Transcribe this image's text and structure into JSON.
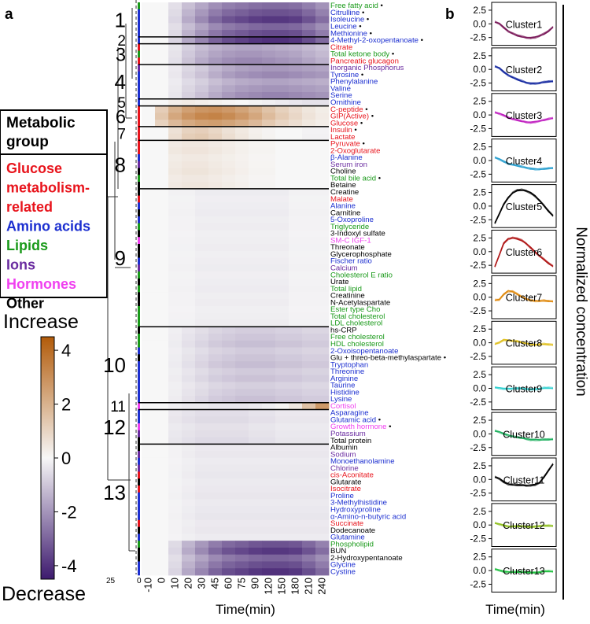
{
  "panel_labels": {
    "a": "a",
    "b": "b"
  },
  "legend": {
    "title": "Metabolic group",
    "groups": [
      {
        "name": "Glucose metabolism-related",
        "lines": [
          "Glucose",
          "metabolism-",
          "related"
        ],
        "color": "#e8141c"
      },
      {
        "name": "Amino acids",
        "lines": [
          "Amino acids"
        ],
        "color": "#1c2fd0"
      },
      {
        "name": "Lipids",
        "lines": [
          "Lipids"
        ],
        "color": "#1a9a1a"
      },
      {
        "name": "Ions",
        "lines": [
          "Ions"
        ],
        "color": "#6a2ca0"
      },
      {
        "name": "Hormones",
        "lines": [
          "Hormones"
        ],
        "color": "#f040f0"
      },
      {
        "name": "Other",
        "lines": [
          "Other"
        ],
        "color": "#000000"
      }
    ]
  },
  "colorbar": {
    "increase_label": "Increase",
    "decrease_label": "Decrease",
    "ticks": [
      "4",
      "2",
      "0",
      "-2",
      "-4"
    ],
    "tick_values": [
      4,
      2,
      0,
      -2,
      -4
    ],
    "range": [
      -4.5,
      4.5
    ],
    "low_color": "#3d1a6e",
    "mid_color": "#f7f7f7",
    "high_color": "#b25b0a"
  },
  "colors": {
    "Glu": "#e8141c",
    "AA": "#1c2fd0",
    "Lip": "#1a9a1a",
    "Ion": "#6a2ca0",
    "Hor": "#f040f0",
    "Oth": "#000000"
  },
  "dendrogram_axis_labels": [
    "25",
    "0"
  ],
  "heatmap": {
    "xlabel": "Time(min)",
    "time_points": [
      "-10",
      "0",
      "10",
      "20",
      "30",
      "45",
      "60",
      "75",
      "90",
      "120",
      "150",
      "180",
      "210",
      "240"
    ],
    "clusters": [
      {
        "id": "1",
        "start": 0,
        "end": 4
      },
      {
        "id": "2",
        "start": 5,
        "end": 5
      },
      {
        "id": "3",
        "start": 6,
        "end": 8
      },
      {
        "id": "4",
        "start": 9,
        "end": 13
      },
      {
        "id": "5",
        "start": 14,
        "end": 14
      },
      {
        "id": "6",
        "start": 15,
        "end": 17
      },
      {
        "id": "7",
        "start": 18,
        "end": 19
      },
      {
        "id": "8",
        "start": 20,
        "end": 26
      },
      {
        "id": "9",
        "start": 27,
        "end": 46
      },
      {
        "id": "10",
        "start": 47,
        "end": 57
      },
      {
        "id": "11",
        "start": 58,
        "end": 58
      },
      {
        "id": "12",
        "start": 59,
        "end": 63
      },
      {
        "id": "13",
        "start": 64,
        "end": 77
      }
    ],
    "rows": [
      {
        "name": "Free fatty acid",
        "group": "Lip",
        "dot": true
      },
      {
        "name": "Citrulline",
        "group": "AA",
        "dot": true
      },
      {
        "name": "Isoleucine",
        "group": "AA",
        "dot": true
      },
      {
        "name": "Leucine",
        "group": "AA",
        "dot": true
      },
      {
        "name": "Methionine",
        "group": "AA",
        "dot": true
      },
      {
        "name": "4-Methyl-2-oxopentanoate",
        "group": "AA",
        "dot": true
      },
      {
        "name": "Citrate",
        "group": "Glu",
        "dot": false
      },
      {
        "name": "Total ketone body",
        "group": "Lip",
        "dot": true
      },
      {
        "name": "Pancreatic glucagon",
        "group": "Glu",
        "dot": false
      },
      {
        "name": "Inorganic Phosphorus",
        "group": "Ion",
        "dot": false
      },
      {
        "name": "Tyrosine",
        "group": "AA",
        "dot": true
      },
      {
        "name": "Phenylalanine",
        "group": "AA",
        "dot": false
      },
      {
        "name": "Valine",
        "group": "AA",
        "dot": false
      },
      {
        "name": "Serine",
        "group": "AA",
        "dot": false
      },
      {
        "name": "Ornithine",
        "group": "AA",
        "dot": false
      },
      {
        "name": "C-peptide",
        "group": "Glu",
        "dot": true
      },
      {
        "name": "GIP(Active)",
        "group": "Glu",
        "dot": true
      },
      {
        "name": "Glucose",
        "group": "Glu",
        "dot": true
      },
      {
        "name": "Insulin",
        "group": "Glu",
        "dot": true
      },
      {
        "name": "Lactate",
        "group": "Glu",
        "dot": false
      },
      {
        "name": "Pyruvate",
        "group": "Glu",
        "dot": true
      },
      {
        "name": "2-Oxoglutarate",
        "group": "Glu",
        "dot": false
      },
      {
        "name": "β-Alanine",
        "group": "AA",
        "dot": false
      },
      {
        "name": "Serum iron",
        "group": "Ion",
        "dot": false
      },
      {
        "name": "Choline",
        "group": "Oth",
        "dot": false
      },
      {
        "name": "Total bile acid",
        "group": "Lip",
        "dot": true
      },
      {
        "name": "Betaine",
        "group": "Oth",
        "dot": false
      },
      {
        "name": "Creatine",
        "group": "Oth",
        "dot": false
      },
      {
        "name": "Malate",
        "group": "Glu",
        "dot": false
      },
      {
        "name": "Alanine",
        "group": "AA",
        "dot": false
      },
      {
        "name": "Carnitine",
        "group": "Oth",
        "dot": false
      },
      {
        "name": "5-Oxoproline",
        "group": "AA",
        "dot": false
      },
      {
        "name": "Triglyceride",
        "group": "Lip",
        "dot": false
      },
      {
        "name": "3-Indoxyl sulfate",
        "group": "Oth",
        "dot": false
      },
      {
        "name": "SM-C IGF-1",
        "group": "Hor",
        "dot": false
      },
      {
        "name": "Threonate",
        "group": "Oth",
        "dot": false
      },
      {
        "name": "Glycerophosphate",
        "group": "Oth",
        "dot": false
      },
      {
        "name": "Fischer ratio",
        "group": "AA",
        "dot": false
      },
      {
        "name": "Calcium",
        "group": "Ion",
        "dot": false
      },
      {
        "name": "Cholesterol E ratio",
        "group": "Lip",
        "dot": false
      },
      {
        "name": "Urate",
        "group": "Oth",
        "dot": false
      },
      {
        "name": "Total lipid",
        "group": "Lip",
        "dot": false
      },
      {
        "name": "Creatinine",
        "group": "Oth",
        "dot": false
      },
      {
        "name": "N-Acetylaspartate",
        "group": "Oth",
        "dot": false
      },
      {
        "name": "Ester type Cho",
        "group": "Lip",
        "dot": false
      },
      {
        "name": "Total cholesterol",
        "group": "Lip",
        "dot": false
      },
      {
        "name": "LDL cholesterol",
        "group": "Lip",
        "dot": false
      },
      {
        "name": "hs-CRP",
        "group": "Oth",
        "dot": false
      },
      {
        "name": "Free cholesterol",
        "group": "Lip",
        "dot": false
      },
      {
        "name": "HDL cholesterol",
        "group": "Lip",
        "dot": false
      },
      {
        "name": "2-Oxoisopentanoate",
        "group": "AA",
        "dot": false
      },
      {
        "name": "Glu + threo-beta-methylaspartate",
        "group": "Oth",
        "dot": true
      },
      {
        "name": "Tryptophan",
        "group": "AA",
        "dot": false
      },
      {
        "name": "Threonine",
        "group": "AA",
        "dot": false
      },
      {
        "name": "Arginine",
        "group": "AA",
        "dot": false
      },
      {
        "name": "Taurine",
        "group": "AA",
        "dot": false
      },
      {
        "name": "Histidine",
        "group": "AA",
        "dot": false
      },
      {
        "name": "Lysine",
        "group": "AA",
        "dot": false
      },
      {
        "name": "Cortisol",
        "group": "Hor",
        "dot": false
      },
      {
        "name": "Asparagine",
        "group": "AA",
        "dot": false
      },
      {
        "name": "Glutamic acid",
        "group": "AA",
        "dot": true
      },
      {
        "name": "Growth hormone",
        "group": "Hor",
        "dot": true
      },
      {
        "name": "Potassium",
        "group": "Ion",
        "dot": false
      },
      {
        "name": "Total protein",
        "group": "Oth",
        "dot": false
      },
      {
        "name": "Albumin",
        "group": "Oth",
        "dot": false
      },
      {
        "name": "Sodium",
        "group": "Ion",
        "dot": false
      },
      {
        "name": "Monoethanolamine",
        "group": "AA",
        "dot": false
      },
      {
        "name": "Chlorine",
        "group": "Ion",
        "dot": false
      },
      {
        "name": "cis-Aconitate",
        "group": "Glu",
        "dot": false
      },
      {
        "name": "Glutarate",
        "group": "Oth",
        "dot": false
      },
      {
        "name": "Isocitrate",
        "group": "Glu",
        "dot": false
      },
      {
        "name": "Proline",
        "group": "AA",
        "dot": false
      },
      {
        "name": "3-Methylhistidine",
        "group": "AA",
        "dot": false
      },
      {
        "name": "Hydroxyproline",
        "group": "AA",
        "dot": false
      },
      {
        "name": "α-Amino-n-butyric acid",
        "group": "AA",
        "dot": false
      },
      {
        "name": "Succinate",
        "group": "Glu",
        "dot": false
      },
      {
        "name": "Dodecanoate",
        "group": "Oth",
        "dot": false
      },
      {
        "name": "Glutamine",
        "group": "AA",
        "dot": false
      },
      {
        "name": "Phospholipid",
        "group": "Lip",
        "dot": false
      },
      {
        "name": "BUN",
        "group": "Oth",
        "dot": false
      },
      {
        "name": "2-Hydroxypentanoate",
        "group": "Oth",
        "dot": false
      },
      {
        "name": "Glycine",
        "group": "AA",
        "dot": false
      },
      {
        "name": "Cystine",
        "group": "AA",
        "dot": false
      }
    ],
    "profiles": {
      "1": [
        0,
        0,
        -0.6,
        -1.4,
        -2.0,
        -2.6,
        -3.0,
        -3.2,
        -3.4,
        -3.5,
        -3.5,
        -3.4,
        -3.0,
        -2.5
      ],
      "3": [
        0,
        0,
        -0.4,
        -0.9,
        -1.3,
        -1.6,
        -1.8,
        -1.9,
        -1.9,
        -1.8,
        -1.7,
        -1.6,
        -1.4,
        -1.2
      ],
      "4": [
        0,
        0,
        -0.3,
        -0.7,
        -1.0,
        -1.4,
        -1.7,
        -1.9,
        -2.0,
        -2.1,
        -2.1,
        -2.0,
        -1.9,
        -1.8
      ],
      "5": [
        0,
        0,
        0.3,
        0.4,
        0.3,
        0.2,
        0.1,
        0,
        -0.1,
        -0.2,
        -0.3,
        -0.4,
        -0.5,
        -0.5
      ],
      "6": [
        0,
        1.2,
        2.0,
        2.5,
        2.8,
        2.9,
        2.7,
        2.4,
        2.0,
        1.5,
        1.1,
        0.8,
        0.5,
        0.3
      ],
      "7": [
        0,
        0,
        0.6,
        1.0,
        1.1,
        0.9,
        0.6,
        0.4,
        0.2,
        0.1,
        0,
        0,
        -0.1,
        -0.1
      ],
      "8": [
        0,
        0,
        0.4,
        0.5,
        0.5,
        0.4,
        0.3,
        0.2,
        0.1,
        0.1,
        0,
        0,
        0,
        0
      ],
      "9": [
        0,
        0,
        -0.1,
        -0.1,
        -0.2,
        -0.2,
        -0.2,
        -0.2,
        -0.2,
        -0.2,
        -0.2,
        -0.1,
        -0.1,
        -0.1
      ],
      "10": [
        0,
        0,
        -0.2,
        -0.4,
        -0.6,
        -0.8,
        -0.9,
        -1.0,
        -1.0,
        -1.0,
        -0.9,
        -0.9,
        -0.8,
        -0.8
      ],
      "11": [
        0,
        0,
        -0.2,
        -0.3,
        -0.3,
        -0.4,
        -0.4,
        -0.4,
        -0.3,
        -0.2,
        0.1,
        0.5,
        1.8,
        3.0
      ],
      "12": [
        0,
        0,
        -0.3,
        -0.4,
        -0.5,
        -0.5,
        -0.5,
        -0.5,
        -0.4,
        -0.4,
        -0.3,
        -0.3,
        -0.3,
        -0.3
      ],
      "13": [
        0,
        0,
        -0.1,
        -0.2,
        -0.3,
        -0.3,
        -0.3,
        -0.3,
        -0.3,
        -0.3,
        -0.3,
        -0.3,
        -0.3,
        -0.3
      ]
    }
  },
  "panel_b": {
    "ylabel": "Normalized concentration",
    "xlabel": "Time(min)",
    "yticks": [
      "2.5",
      "0.0",
      "-2.5"
    ],
    "ytick_values": [
      2.5,
      0,
      -2.5
    ],
    "ylim": [
      -3.5,
      3.5
    ],
    "clusters": [
      {
        "label": "Cluster1",
        "color": "#7a1a5a",
        "profile": [
          0.3,
          0.1,
          -0.6,
          -1.3,
          -1.8,
          -2.2,
          -2.4,
          -2.5,
          -2.5,
          -2.4,
          -2.2,
          -1.9,
          -1.4,
          -0.6
        ]
      },
      {
        "label": "Cluster2",
        "color": "#1428a0",
        "profile": [
          0.5,
          0.3,
          -0.4,
          -1.0,
          -1.5,
          -1.9,
          -2.2,
          -2.4,
          -2.5,
          -2.5,
          -2.5,
          -2.4,
          -2.3,
          -2.2
        ]
      },
      {
        "label": "Cluster3",
        "color": "#c020c0",
        "profile": [
          0.4,
          0.3,
          0.0,
          -0.4,
          -0.8,
          -1.0,
          -1.2,
          -1.3,
          -1.3,
          -1.2,
          -1.1,
          -1.0,
          -0.8,
          -0.6
        ]
      },
      {
        "label": "Cluster4",
        "color": "#2aa0d0",
        "profile": [
          0.5,
          0.3,
          -0.1,
          -0.5,
          -0.8,
          -1.0,
          -1.2,
          -1.3,
          -1.4,
          -1.5,
          -1.6,
          -1.6,
          -1.5,
          -1.4
        ]
      },
      {
        "label": "Cluster5",
        "color": "#000000",
        "profile": [
          -3.2,
          -1.4,
          0.4,
          1.6,
          2.4,
          2.8,
          2.9,
          2.8,
          2.5,
          1.9,
          1.0,
          0.0,
          -1.0,
          -1.8
        ]
      },
      {
        "label": "Cluster6",
        "color": "#b01818",
        "profile": [
          -2.8,
          -0.6,
          1.6,
          2.4,
          2.5,
          2.3,
          2.0,
          1.5,
          0.8,
          0.0,
          -0.8,
          -1.5,
          -2.2,
          -2.7
        ]
      },
      {
        "label": "Cluster7",
        "color": "#e08a10",
        "profile": [
          -0.6,
          -0.4,
          0.6,
          1.2,
          1.0,
          0.5,
          0.0,
          -0.3,
          -0.5,
          -0.6,
          -0.7,
          -0.7,
          -0.8,
          -0.8
        ]
      },
      {
        "label": "Cluster8",
        "color": "#e0c020",
        "profile": [
          -0.3,
          0.1,
          0.6,
          0.5,
          0.3,
          0.2,
          0.0,
          -0.1,
          -0.2,
          -0.3,
          -0.3,
          -0.3,
          -0.4,
          -0.4
        ]
      },
      {
        "label": "Cluster9",
        "color": "#30d0d0",
        "profile": [
          0.1,
          0.1,
          0.0,
          0.0,
          -0.1,
          -0.1,
          -0.1,
          -0.1,
          -0.1,
          -0.1,
          -0.1,
          0.0,
          0.0,
          0.0
        ]
      },
      {
        "label": "Cluster10",
        "color": "#20b060",
        "profile": [
          0.5,
          0.4,
          0.1,
          -0.2,
          -0.5,
          -0.7,
          -0.8,
          -0.9,
          -1.0,
          -1.0,
          -1.1,
          -1.1,
          -1.1,
          -1.0
        ]
      },
      {
        "label": "Cluster11",
        "color": "#000000",
        "profile": [
          0.4,
          0.2,
          -0.4,
          -0.8,
          -1.0,
          -1.1,
          -1.1,
          -1.1,
          -1.0,
          -0.9,
          -0.6,
          0.4,
          1.6,
          2.8
        ]
      },
      {
        "label": "Cluster12",
        "color": "#90c020",
        "profile": [
          0.3,
          0.2,
          0.0,
          -0.2,
          -0.3,
          -0.3,
          -0.3,
          -0.3,
          -0.3,
          -0.2,
          -0.2,
          -0.2,
          -0.2,
          -0.2
        ]
      },
      {
        "label": "Cluster13",
        "color": "#20c040",
        "profile": [
          0.2,
          0.1,
          -0.1,
          -0.2,
          -0.3,
          -0.3,
          -0.3,
          -0.3,
          -0.3,
          -0.3,
          -0.3,
          -0.2,
          -0.2,
          -0.2
        ]
      }
    ]
  },
  "chart_data": {
    "type": "heatmap",
    "title": "",
    "xlabel": "Time(min)",
    "ylabel": "",
    "colorbar_range": [
      -4.5,
      4.5
    ],
    "cluster_count": 13,
    "panel_b_type": "line",
    "panel_b_ylabel": "Normalized concentration",
    "panel_b_xlabel": "Time(min)"
  }
}
